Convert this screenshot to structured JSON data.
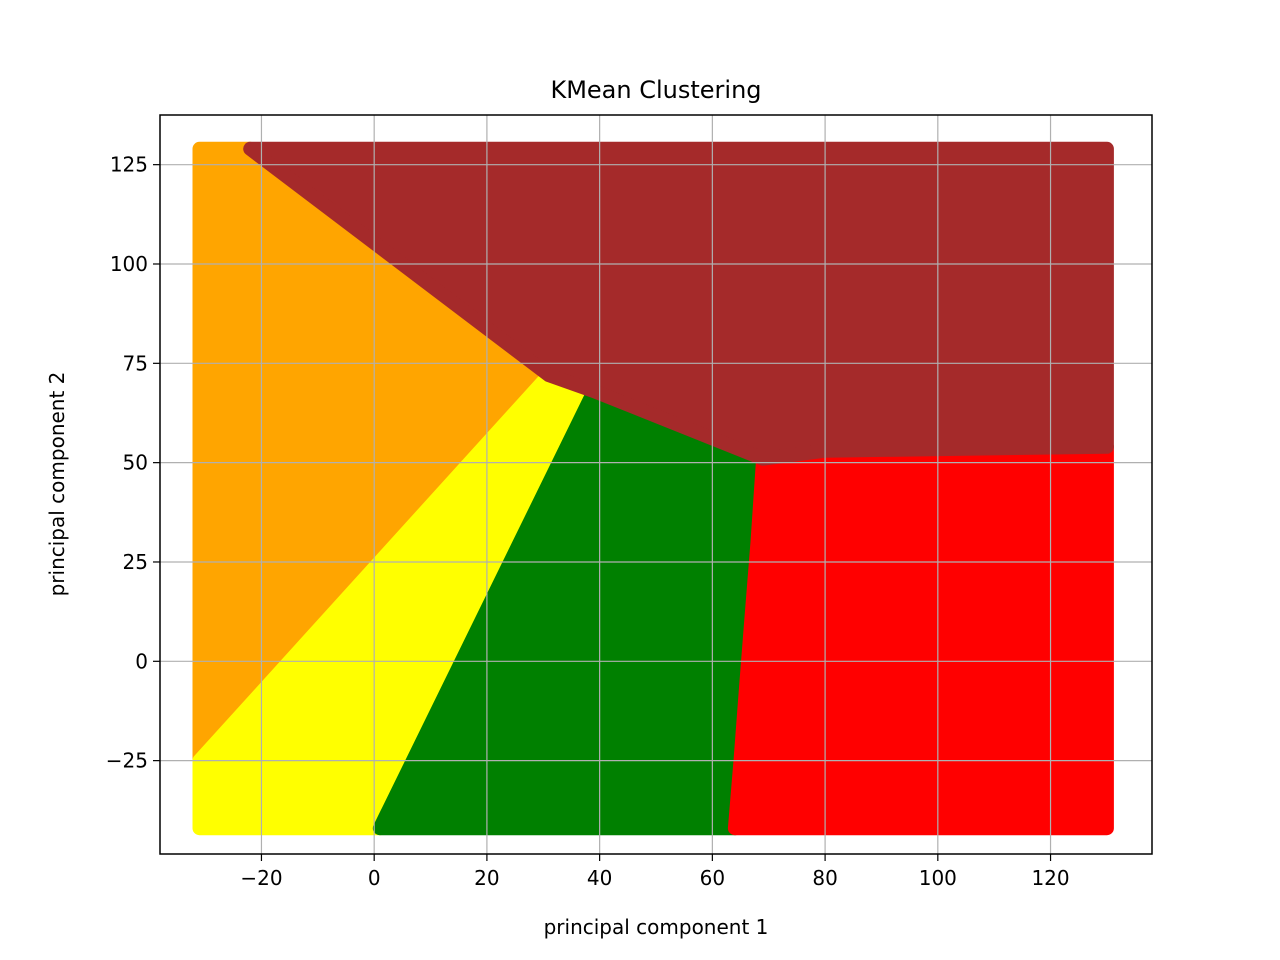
{
  "chart_data": {
    "type": "scatter",
    "title": "KMean Clustering",
    "xlabel": "principal component 1",
    "ylabel": "principal component 2",
    "xlim": [
      -38,
      138
    ],
    "ylim": [
      -48.5,
      137.5
    ],
    "xticks": [
      -20,
      0,
      20,
      40,
      60,
      80,
      100,
      120
    ],
    "yticks": [
      -25,
      0,
      25,
      50,
      75,
      100,
      125
    ],
    "xtick_labels": [
      "−20",
      "0",
      "20",
      "40",
      "60",
      "80",
      "100",
      "120"
    ],
    "ytick_labels": [
      "−25",
      "0",
      "25",
      "50",
      "75",
      "100",
      "125"
    ],
    "grid": true,
    "legend": "none",
    "clusters": [
      {
        "color": "#ffa500",
        "polygon": [
          [
            -31,
            129
          ],
          [
            -22,
            129
          ],
          [
            31,
            72
          ],
          [
            -31,
            -25
          ]
        ]
      },
      {
        "color": "#ffff00",
        "polygon": [
          [
            -31,
            -25
          ],
          [
            31,
            72
          ],
          [
            39,
            68
          ],
          [
            1,
            -42
          ],
          [
            -31,
            -42
          ]
        ]
      },
      {
        "color": "#008000",
        "polygon": [
          [
            1,
            -42
          ],
          [
            39,
            68
          ],
          [
            69,
            51
          ],
          [
            68,
            30
          ],
          [
            67,
            12
          ],
          [
            66,
            -6
          ],
          [
            65,
            -25
          ],
          [
            64,
            -42
          ]
        ]
      },
      {
        "color": "#ff0000",
        "polygon": [
          [
            64,
            -42
          ],
          [
            65,
            -25
          ],
          [
            66,
            -6
          ],
          [
            67,
            12
          ],
          [
            68,
            30
          ],
          [
            69,
            51
          ],
          [
            80,
            53
          ],
          [
            130,
            54
          ],
          [
            130,
            -42
          ]
        ]
      },
      {
        "color": "#a52a2a",
        "polygon": [
          [
            -22,
            129
          ],
          [
            130,
            129
          ],
          [
            130,
            54
          ],
          [
            80,
            53
          ],
          [
            69,
            51
          ],
          [
            39,
            68
          ],
          [
            31,
            72
          ]
        ]
      }
    ]
  }
}
